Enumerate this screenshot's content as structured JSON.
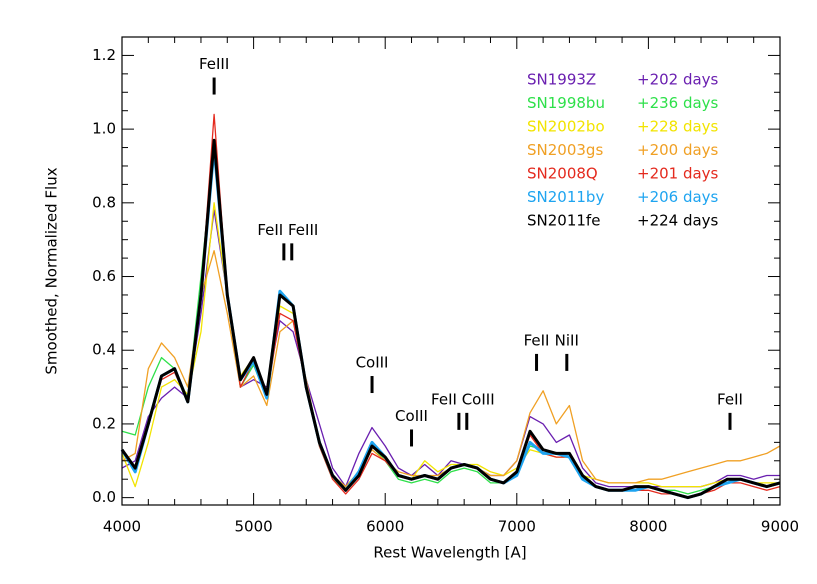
{
  "chart_data": {
    "type": "line",
    "xlabel": "Rest Wavelength [A]",
    "ylabel": "Smoothed, Normalized Flux",
    "xlim": [
      4000,
      9000
    ],
    "ylim": [
      -0.02,
      1.25
    ],
    "xticks": [
      4000,
      5000,
      6000,
      7000,
      8000,
      9000
    ],
    "yticks": [
      {
        "value": 0,
        "label": "0.0"
      },
      0.2,
      0.4,
      0.6,
      0.8,
      {
        "value": 1,
        "label": "1.0"
      },
      1.2
    ],
    "x": [
      4000,
      4100,
      4200,
      4300,
      4400,
      4500,
      4600,
      4700,
      4800,
      4900,
      5000,
      5100,
      5200,
      5300,
      5400,
      5500,
      5600,
      5700,
      5800,
      5900,
      6000,
      6100,
      6200,
      6300,
      6400,
      6500,
      6600,
      6700,
      6800,
      6900,
      7000,
      7100,
      7200,
      7300,
      7400,
      7500,
      7600,
      7700,
      7800,
      7900,
      8000,
      8100,
      8200,
      8300,
      8400,
      8500,
      8600,
      8700,
      8800,
      8900,
      9000
    ],
    "series": [
      {
        "name": "SN1993Z",
        "epoch": "+202 days",
        "color": "#6a1fb0",
        "width": 1.3,
        "values": [
          0.08,
          0.1,
          0.22,
          0.27,
          0.3,
          0.27,
          0.5,
          0.78,
          0.55,
          0.3,
          0.32,
          0.3,
          0.48,
          0.45,
          0.32,
          0.2,
          0.08,
          0.03,
          0.12,
          0.19,
          0.14,
          0.08,
          0.06,
          0.09,
          0.06,
          0.1,
          0.09,
          0.08,
          0.06,
          0.06,
          0.1,
          0.22,
          0.2,
          0.15,
          0.17,
          0.08,
          0.04,
          0.03,
          0.03,
          0.03,
          0.03,
          0.03,
          0.03,
          0.03,
          0.03,
          0.04,
          0.06,
          0.06,
          0.05,
          0.06,
          0.06
        ]
      },
      {
        "name": "SN1998bu",
        "epoch": "+236 days",
        "color": "#2ee04a",
        "width": 1.3,
        "values": [
          0.18,
          0.17,
          0.3,
          0.38,
          0.35,
          0.27,
          0.6,
          0.95,
          0.55,
          0.3,
          0.36,
          0.27,
          0.56,
          0.52,
          0.3,
          0.14,
          0.05,
          0.02,
          0.07,
          0.14,
          0.1,
          0.05,
          0.04,
          0.05,
          0.04,
          0.07,
          0.08,
          0.07,
          0.04,
          0.04,
          0.07,
          0.14,
          0.13,
          0.12,
          0.12,
          0.05,
          0.03,
          0.02,
          0.02,
          0.02,
          0.03,
          0.02,
          0.02,
          0.01,
          0.02,
          0.03,
          0.05,
          0.05,
          0.04,
          0.03,
          0.04
        ]
      },
      {
        "name": "SN2002bo",
        "epoch": "+228 days",
        "color": "#f2e400",
        "width": 1.3,
        "values": [
          0.12,
          0.03,
          0.15,
          0.3,
          0.32,
          0.28,
          0.45,
          0.8,
          0.55,
          0.33,
          0.38,
          0.28,
          0.52,
          0.5,
          0.31,
          0.15,
          0.06,
          0.03,
          0.07,
          0.14,
          0.11,
          0.06,
          0.05,
          0.1,
          0.07,
          0.09,
          0.09,
          0.09,
          0.07,
          0.06,
          0.08,
          0.13,
          0.12,
          0.11,
          0.11,
          0.06,
          0.05,
          0.04,
          0.04,
          0.04,
          0.04,
          0.03,
          0.03,
          0.03,
          0.03,
          0.04,
          0.05,
          0.05,
          0.04,
          0.04,
          0.04
        ]
      },
      {
        "name": "SN2003gs",
        "epoch": "+200 days",
        "color": "#f0a024",
        "width": 1.3,
        "values": [
          0.1,
          0.12,
          0.35,
          0.42,
          0.38,
          0.3,
          0.55,
          0.67,
          0.5,
          0.3,
          0.33,
          0.25,
          0.45,
          0.48,
          0.32,
          0.15,
          0.06,
          0.03,
          0.07,
          0.13,
          0.1,
          0.07,
          0.06,
          0.06,
          0.06,
          0.08,
          0.09,
          0.08,
          0.06,
          0.06,
          0.1,
          0.23,
          0.29,
          0.2,
          0.25,
          0.1,
          0.05,
          0.04,
          0.04,
          0.04,
          0.05,
          0.05,
          0.06,
          0.07,
          0.08,
          0.09,
          0.1,
          0.1,
          0.11,
          0.12,
          0.14
        ]
      },
      {
        "name": "SN2008Q",
        "epoch": "+201 days",
        "color": "#e42a1e",
        "width": 1.3,
        "values": [
          0.13,
          0.07,
          0.2,
          0.32,
          0.34,
          0.26,
          0.55,
          1.04,
          0.55,
          0.3,
          0.37,
          0.27,
          0.5,
          0.48,
          0.3,
          0.14,
          0.05,
          0.01,
          0.05,
          0.12,
          0.1,
          0.06,
          0.05,
          0.06,
          0.05,
          0.08,
          0.09,
          0.08,
          0.05,
          0.04,
          0.07,
          0.17,
          0.12,
          0.11,
          0.11,
          0.05,
          0.03,
          0.02,
          0.02,
          0.02,
          0.02,
          0.01,
          0.01,
          0,
          0.01,
          0.02,
          0.04,
          0.04,
          0.03,
          0.02,
          0.03
        ]
      },
      {
        "name": "SN2011by",
        "epoch": "+206 days",
        "color": "#1ea4f0",
        "width": 3,
        "values": [
          0.13,
          0.07,
          0.2,
          0.33,
          0.35,
          0.26,
          0.55,
          0.95,
          0.55,
          0.32,
          0.37,
          0.27,
          0.56,
          0.52,
          0.3,
          0.15,
          0.06,
          0.02,
          0.07,
          0.15,
          0.11,
          0.06,
          0.05,
          0.06,
          0.05,
          0.08,
          0.09,
          0.08,
          0.05,
          0.04,
          0.06,
          0.15,
          0.12,
          0.12,
          0.11,
          0.05,
          0.03,
          0.02,
          0.02,
          0.02,
          0.03,
          0.02,
          0.01,
          0,
          0.01,
          0.03,
          0.04,
          0.05,
          0.04,
          0.03,
          0.04
        ]
      },
      {
        "name": "SN2011fe",
        "epoch": "+224 days",
        "color": "#000000",
        "width": 3,
        "values": [
          0.13,
          0.08,
          0.2,
          0.33,
          0.35,
          0.26,
          0.55,
          0.97,
          0.55,
          0.32,
          0.38,
          0.28,
          0.55,
          0.52,
          0.3,
          0.15,
          0.06,
          0.02,
          0.06,
          0.14,
          0.11,
          0.06,
          0.05,
          0.06,
          0.05,
          0.08,
          0.09,
          0.08,
          0.05,
          0.04,
          0.07,
          0.18,
          0.13,
          0.12,
          0.12,
          0.06,
          0.03,
          0.02,
          0.02,
          0.03,
          0.03,
          0.02,
          0.01,
          0,
          0.01,
          0.03,
          0.05,
          0.05,
          0.04,
          0.03,
          0.04
        ]
      }
    ],
    "line_ids": [
      {
        "label": "FeIII",
        "x": [
          4700
        ],
        "y": 1.14
      },
      {
        "label": "FeII FeIII",
        "x": [
          5230,
          5290
        ],
        "y": 0.69
      },
      {
        "label": "CoIII",
        "x": [
          5900
        ],
        "y": 0.33
      },
      {
        "label": "CoIII",
        "x": [
          6200
        ],
        "y": 0.185
      },
      {
        "label": "FeII CoIII",
        "x": [
          6560,
          6620
        ],
        "y": 0.23
      },
      {
        "label": "FeII",
        "x": [
          7150
        ],
        "y": 0.39
      },
      {
        "label": "NiII",
        "x": [
          7380
        ],
        "y": 0.39
      },
      {
        "label": "FeII",
        "x": [
          8620
        ],
        "y": 0.23
      }
    ]
  }
}
